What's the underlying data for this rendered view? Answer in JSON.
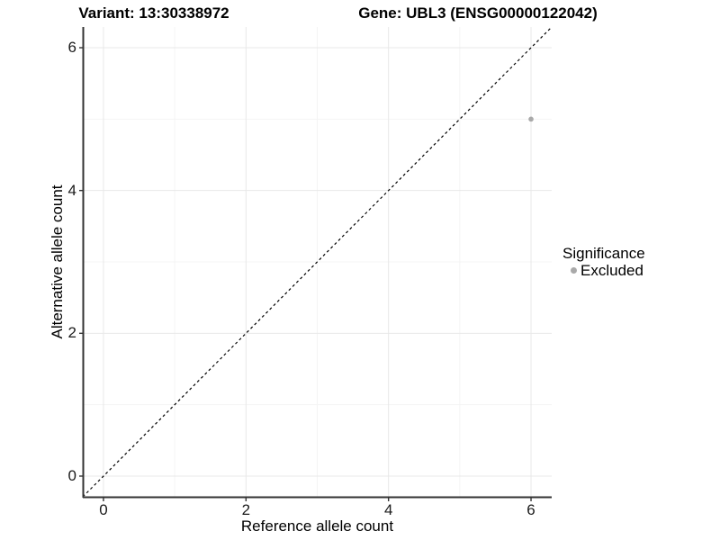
{
  "titles": {
    "variant": "Variant: 13:30338972",
    "gene": "Gene: UBL3 (ENSG00000122042)"
  },
  "chart_data": {
    "type": "scatter",
    "title_left": "Variant: 13:30338972",
    "title_right": "Gene: UBL3 (ENSG00000122042)",
    "xlabel": "Reference allele count",
    "ylabel": "Alternative allele count",
    "xlim": [
      -0.29,
      6.29
    ],
    "ylim": [
      -0.29,
      6.29
    ],
    "x_ticks": [
      0,
      2,
      4,
      6
    ],
    "y_ticks": [
      0,
      2,
      4,
      6
    ],
    "x_minor_ticks": [
      1,
      3,
      5
    ],
    "y_minor_ticks": [
      1,
      3,
      5
    ],
    "grid": true,
    "points": [
      {
        "x": 6,
        "y": 5,
        "series": "Excluded"
      }
    ],
    "reference_line": {
      "kind": "diagonal-identity",
      "style": "dashed",
      "color": "#000000"
    },
    "legend": {
      "position": "right",
      "title": "Significance",
      "entries": [
        {
          "label": "Excluded",
          "color": "#a9a9a9"
        }
      ]
    },
    "colors": {
      "point": "#a9a9a9",
      "major_grid": "#e8e8e8",
      "minor_grid": "#f4f4f4",
      "axis_line": "#333333",
      "background": "#ffffff"
    }
  }
}
